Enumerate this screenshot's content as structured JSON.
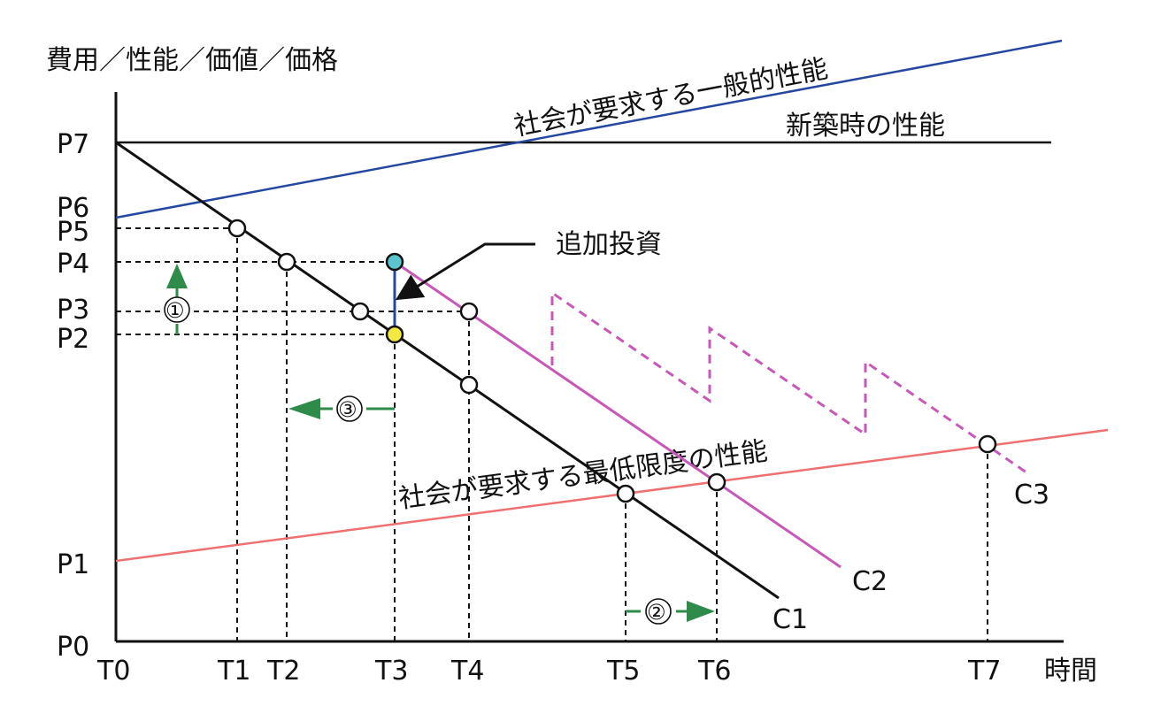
{
  "y_axis_title": "費用／性能／価値／価格",
  "x_axis_title": "時間",
  "y_ticks": [
    "P0",
    "P1",
    "P2",
    "P3",
    "P4",
    "P5",
    "P6",
    "P7"
  ],
  "x_ticks": [
    "T0",
    "T1",
    "T2",
    "T3",
    "T4",
    "T5",
    "T6",
    "T7"
  ],
  "labels": {
    "social_general": "社会が要求する一般的性能",
    "new_build": "新築時の性能",
    "social_minimum": "社会が要求する最低限度の性能",
    "additional_investment": "追加投資",
    "c1": "C1",
    "c2": "C2",
    "c3": "C3"
  },
  "markers": {
    "m1": "①",
    "m2": "②",
    "m3": "③"
  },
  "colors": {
    "axis": "#111111",
    "general_line": "#2448a0",
    "minimum_line": "#ee7070",
    "c2_line": "#c858b8",
    "c3_line": "#c858b8",
    "investment": "#2448a0",
    "arrow_green": "#2e8b4a",
    "point_cyan": "#5bc4cc",
    "point_yellow": "#f4e842"
  }
}
